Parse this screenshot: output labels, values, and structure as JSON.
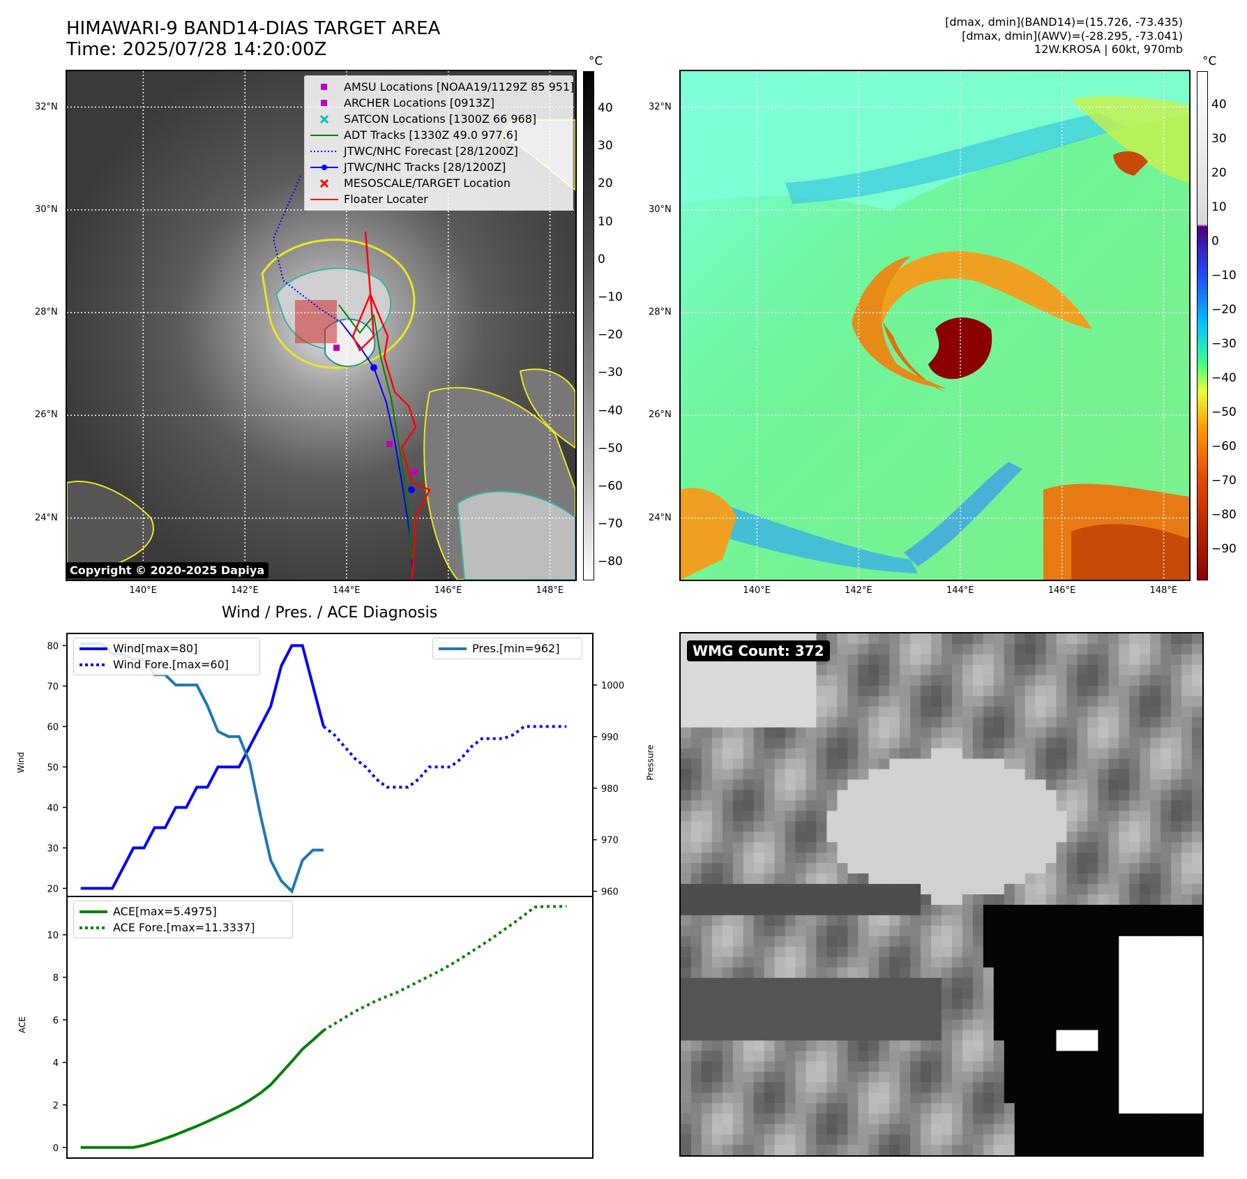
{
  "header": {
    "title_line1": "HIMAWARI-9 BAND14-DIAS TARGET AREA",
    "title_line2": "Time: 2025/07/28 14:20:00Z",
    "info_line1": "[dmax, dmin](BAND14)=(15.726, -73.435)",
    "info_line2": "[dmax, dmin](AWV)=(-28.295, -73.041)",
    "info_line3": "12W.KROSA | 60kt, 970mb"
  },
  "map": {
    "lat_labels": [
      "32°N",
      "30°N",
      "28°N",
      "26°N",
      "24°N"
    ],
    "lat_values": [
      32,
      30,
      28,
      26,
      24
    ],
    "lon_labels": [
      "140°E",
      "142°E",
      "144°E",
      "146°E",
      "148°E"
    ],
    "lon_values": [
      140,
      142,
      144,
      146,
      148
    ],
    "extent": {
      "lon": [
        138.5,
        148.5
      ],
      "lat": [
        22.8,
        32.7
      ]
    },
    "copyright": "Copyright © 2020-2025 Dapiya"
  },
  "legend_ir": [
    {
      "label": "AMSU Locations [NOAA19/1129Z 85 951]",
      "symbol": "square",
      "color": "#bf00bf"
    },
    {
      "label": "ARCHER Locations [0913Z]",
      "symbol": "square",
      "color": "#bf00bf"
    },
    {
      "label": "SATCON Locations [1300Z 66 968]",
      "symbol": "x",
      "color": "#00bfbf"
    },
    {
      "label": "ADT Tracks [1330Z 49.0 977.6]",
      "symbol": "line",
      "color": "#008000"
    },
    {
      "label": "JTWC/NHC Forecast [28/1200Z]",
      "symbol": "dotted",
      "color": "#0000ff"
    },
    {
      "label": "JTWC/NHC Tracks [28/1200Z]",
      "symbol": "line-dot",
      "color": "#0000ff"
    },
    {
      "label": "MESOSCALE/TARGET Location",
      "symbol": "x",
      "color": "#ff0000"
    },
    {
      "label": "Floater Locater",
      "symbol": "line",
      "color": "#ff0000"
    }
  ],
  "colorbar_ir": {
    "unit": "°C",
    "labels": [
      "40",
      "30",
      "20",
      "10",
      "0",
      "−10",
      "−20",
      "−30",
      "−40",
      "−50",
      "−60",
      "−70",
      "−80"
    ]
  },
  "colorbar_awv": {
    "unit": "°C",
    "labels": [
      "40",
      "30",
      "20",
      "10",
      "0",
      "−10",
      "−20",
      "−30",
      "−40",
      "−50",
      "−60",
      "−70",
      "−80",
      "−90"
    ]
  },
  "wmg": {
    "label": "WMG Count: 372"
  },
  "chart_data": [
    {
      "type": "line",
      "title": "Wind / Pres. / ACE Diagnosis",
      "ylabel": "Wind",
      "ylabel_right": "Pressure",
      "ylim": [
        18,
        83
      ],
      "ylim_right": [
        959,
        1010
      ],
      "yticks": [
        20,
        30,
        40,
        50,
        60,
        70,
        80
      ],
      "yticks_right": [
        960,
        970,
        980,
        990,
        1000
      ],
      "x": [
        0,
        1,
        2,
        3,
        4,
        5,
        6,
        7,
        8,
        9,
        10,
        11,
        12,
        13,
        14,
        15,
        16,
        17,
        18,
        19,
        20,
        21,
        22,
        23,
        24,
        25,
        26,
        27,
        28,
        29,
        30,
        31,
        32,
        33,
        34,
        35,
        36,
        37,
        38,
        39,
        40,
        41,
        42,
        43,
        44,
        45,
        46
      ],
      "series": [
        {
          "name": "Wind[max=80]",
          "style": "solid",
          "color": "#0000ff",
          "x": [
            0,
            1,
            2,
            3,
            4,
            5,
            6,
            7,
            8,
            9,
            10,
            11,
            12,
            13,
            14,
            15,
            16,
            17,
            18,
            19,
            20,
            21,
            22,
            23
          ],
          "values": [
            20,
            20,
            20,
            20,
            25,
            30,
            30,
            35,
            35,
            40,
            40,
            45,
            45,
            50,
            50,
            50,
            55,
            60,
            65,
            75,
            80,
            80,
            70,
            60
          ]
        },
        {
          "name": "Wind Fore.[max=60]",
          "style": "dotted",
          "color": "#0000ff",
          "x": [
            23,
            24,
            25,
            26,
            27,
            28,
            29,
            30,
            31,
            32,
            33,
            34,
            35,
            36,
            37,
            38,
            39,
            40,
            41,
            42,
            43,
            44,
            45,
            46
          ],
          "values": [
            60,
            58,
            55,
            52,
            50,
            47,
            45,
            45,
            45,
            47,
            50,
            50,
            50,
            52,
            55,
            57,
            57,
            57,
            58,
            60,
            60,
            60,
            60,
            60
          ]
        },
        {
          "name": "Pres.[min=962]",
          "style": "solid",
          "color": "#1f77b4",
          "axis": "right",
          "x": [
            0,
            1,
            2,
            3,
            4,
            5,
            6,
            7,
            8,
            9,
            10,
            11,
            12,
            13,
            14,
            15,
            16,
            17,
            18,
            19,
            20,
            21,
            22,
            23
          ],
          "values": [
            1008,
            1008,
            1008,
            1006,
            1006,
            1005,
            1005,
            1002,
            1002,
            1000,
            1000,
            1000,
            996,
            991,
            990,
            990,
            985,
            975,
            966,
            962,
            960,
            966,
            968,
            968
          ]
        }
      ]
    },
    {
      "type": "line",
      "ylabel": "ACE",
      "ylim": [
        -0.5,
        11.8
      ],
      "yticks": [
        0,
        2,
        4,
        6,
        8,
        10
      ],
      "series": [
        {
          "name": "ACE[max=5.4975]",
          "style": "solid",
          "color": "#008000",
          "x": [
            0,
            1,
            2,
            3,
            4,
            5,
            6,
            7,
            8,
            9,
            10,
            11,
            12,
            13,
            14,
            15,
            16,
            17,
            18,
            19,
            20,
            21,
            22,
            23
          ],
          "values": [
            0,
            0,
            0,
            0,
            0,
            0,
            0.1,
            0.25,
            0.42,
            0.6,
            0.8,
            1.0,
            1.22,
            1.45,
            1.68,
            1.93,
            2.22,
            2.55,
            2.95,
            3.5,
            4.05,
            4.62,
            5.05,
            5.5
          ]
        },
        {
          "name": "ACE Fore.[max=11.3337]",
          "style": "dotted",
          "color": "#008000",
          "x": [
            23,
            24,
            25,
            26,
            27,
            28,
            29,
            30,
            31,
            32,
            33,
            34,
            35,
            36,
            37,
            38,
            39,
            40,
            41,
            42,
            43,
            44,
            45,
            46
          ],
          "values": [
            5.5,
            5.8,
            6.1,
            6.4,
            6.65,
            6.9,
            7.1,
            7.3,
            7.55,
            7.8,
            8.05,
            8.3,
            8.58,
            8.88,
            9.2,
            9.52,
            9.85,
            10.2,
            10.55,
            10.92,
            11.3,
            11.33,
            11.33,
            11.33
          ]
        }
      ]
    }
  ]
}
